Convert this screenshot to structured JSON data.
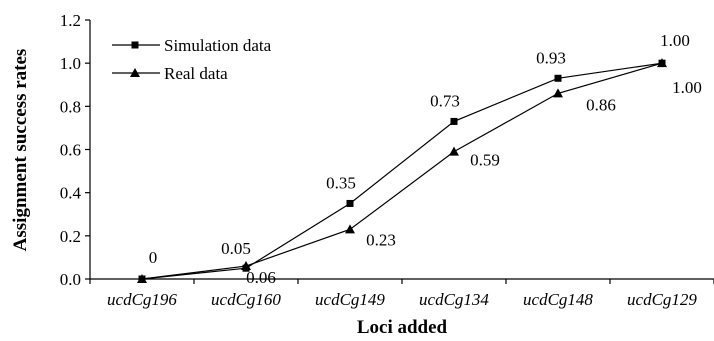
{
  "chart_data": {
    "type": "line",
    "xlabel": "Loci added",
    "ylabel": "Assignment success rates",
    "categories": [
      "ucdCg196",
      "ucdCg160",
      "ucdCg149",
      "ucdCg134",
      "ucdCg148",
      "ucdCg129"
    ],
    "ylim": [
      0,
      1.2
    ],
    "yticks": [
      "0.0",
      "0.2",
      "0.4",
      "0.6",
      "0.8",
      "1.0",
      "1.2"
    ],
    "grid": false,
    "legend_position": "top-left",
    "series": [
      {
        "name": "Simulation data",
        "marker": "square",
        "values": [
          0,
          0.05,
          0.35,
          0.73,
          0.93,
          1.0
        ],
        "labels": [
          "0",
          "0.05",
          "0.35",
          "0.73",
          "0.93",
          "1.00"
        ]
      },
      {
        "name": "Real data",
        "marker": "triangle",
        "values": [
          0,
          0.06,
          0.23,
          0.59,
          0.86,
          1.0
        ],
        "labels": [
          "",
          "0.06",
          "0.23",
          "0.59",
          "0.86",
          "1.00"
        ]
      }
    ]
  }
}
